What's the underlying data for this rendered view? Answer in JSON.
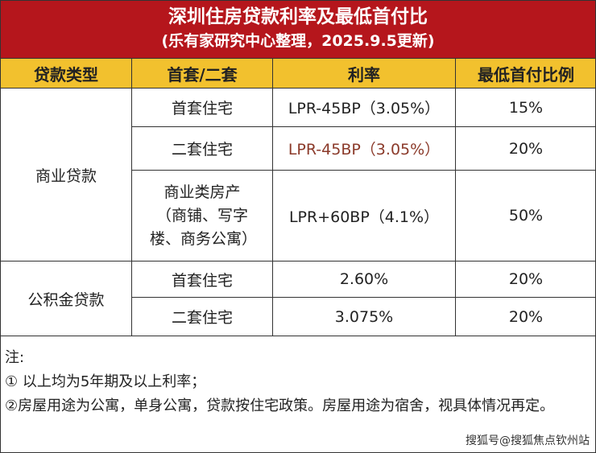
{
  "title": {
    "main": "深圳住房贷款利率及最低首付比",
    "sub": "(乐有家研究中心整理，2025.9.5更新)"
  },
  "table": {
    "headers": [
      "贷款类型",
      "首套/二套",
      "利率",
      "最低首付比例"
    ],
    "groups": [
      {
        "type": "商业贷款",
        "rows": [
          {
            "kind": "首套住宅",
            "rate": "LPR-45BP（3.05%）",
            "down": "15%"
          },
          {
            "kind": "二套住宅",
            "rate": "LPR-45BP（3.05%）",
            "down": "20%"
          },
          {
            "kind": "商业类房产（商铺、写字楼、商务公寓）",
            "rate": "LPR+60BP（4.1%）",
            "down": "50%"
          }
        ]
      },
      {
        "type": "公积金贷款",
        "rows": [
          {
            "kind": "首套住宅",
            "rate": "2.60%",
            "down": "20%"
          },
          {
            "kind": "二套住宅",
            "rate": "3.075%",
            "down": "20%"
          }
        ]
      }
    ]
  },
  "notes": {
    "label": "注:",
    "items": [
      "① 以上均为5年期及以上利率；",
      "②房屋用途为公寓，单身公寓，贷款按住宅政策。房屋用途为宿舍，视具体情况再定。"
    ]
  },
  "credit": "搜狐号@搜狐焦点钦州站",
  "watermark": "乐有家",
  "colors": {
    "title_bg": "#b5161c",
    "header_bg": "#f2c12e",
    "highlight_rate": "#8b3a2a"
  }
}
